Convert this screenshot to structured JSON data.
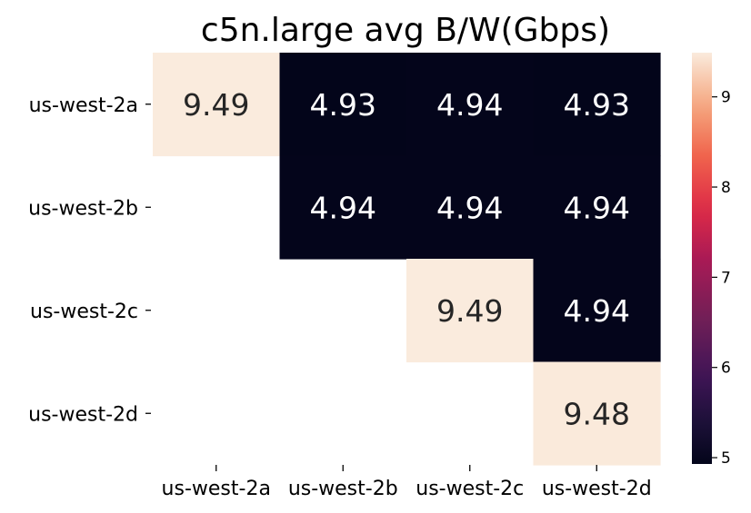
{
  "chart_data": {
    "type": "heatmap",
    "title": "c5n.large avg B/W(Gbps)",
    "xlabel": "",
    "ylabel": "",
    "rows": [
      "us-west-2a",
      "us-west-2b",
      "us-west-2c",
      "us-west-2d"
    ],
    "columns": [
      "us-west-2a",
      "us-west-2b",
      "us-west-2c",
      "us-west-2d"
    ],
    "values": [
      [
        9.49,
        4.93,
        4.94,
        4.93
      ],
      [
        null,
        4.94,
        4.94,
        4.94
      ],
      [
        null,
        null,
        9.49,
        4.94
      ],
      [
        null,
        null,
        null,
        9.48
      ]
    ],
    "value_labels": [
      [
        "9.49",
        "4.93",
        "4.94",
        "4.93"
      ],
      [
        "",
        "4.94",
        "4.94",
        "4.94"
      ],
      [
        "",
        "",
        "9.49",
        "4.94"
      ],
      [
        "",
        "",
        "",
        "9.48"
      ]
    ],
    "colorbar": {
      "colormap": "rocket",
      "range": [
        4.93,
        9.49
      ],
      "ticks": [
        "5",
        "6",
        "7",
        "8",
        "9"
      ],
      "tick_values": [
        5,
        6,
        7,
        8,
        9
      ]
    },
    "empty_cells": "lower triangle masked",
    "grid": false,
    "colors": {
      "low": "#03051a",
      "high": "#faebdd",
      "text_on_dark": "#ffffff",
      "text_on_light": "#262626"
    }
  }
}
